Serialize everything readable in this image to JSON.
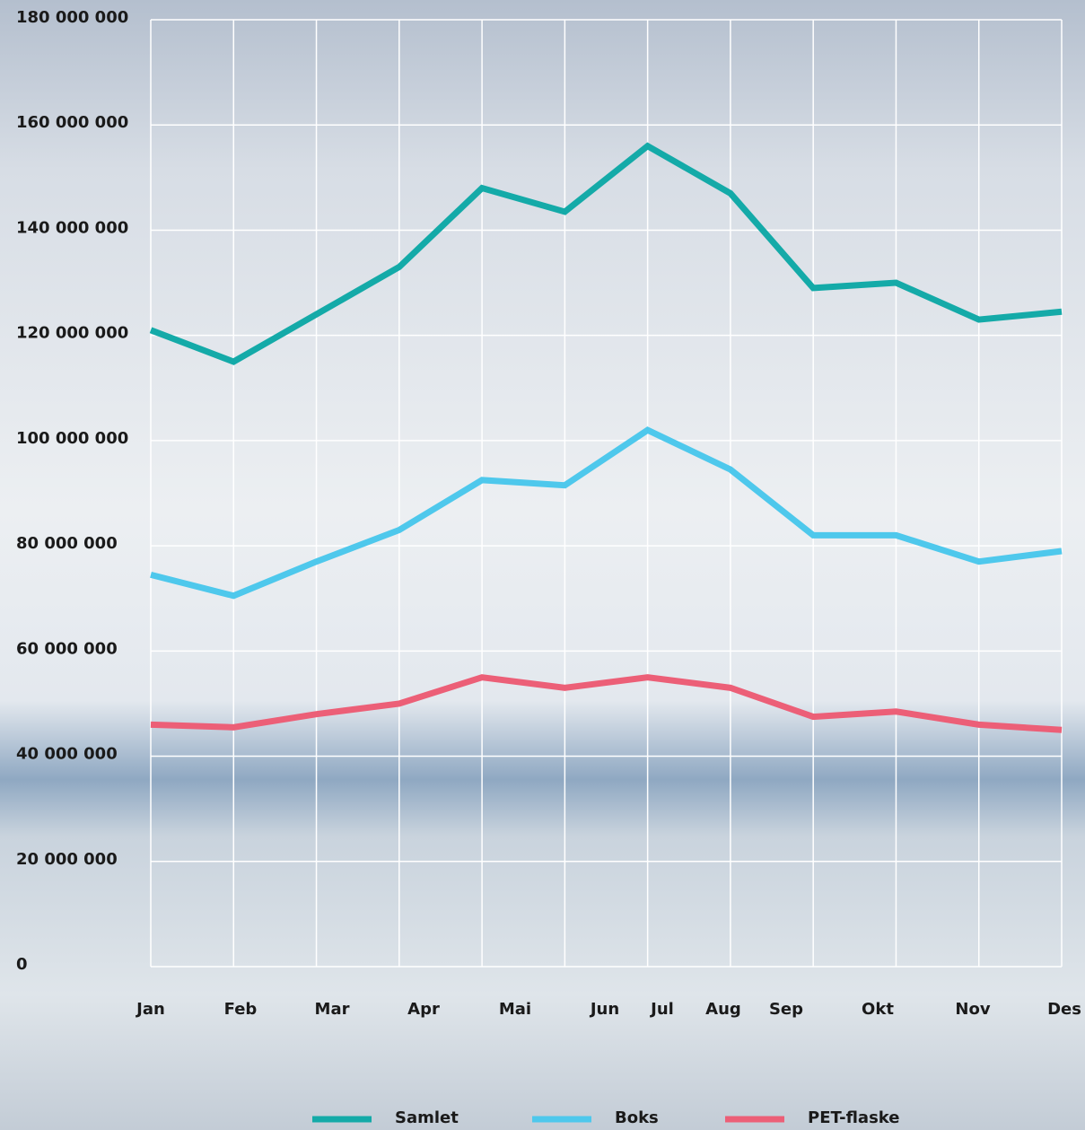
{
  "chart_data": {
    "type": "line",
    "categories": [
      "Jan",
      "Feb",
      "Mar",
      "Apr",
      "Mai",
      "Jun",
      "Jul",
      "Aug",
      "Sep",
      "Okt",
      "Nov",
      "Des"
    ],
    "series": [
      {
        "name": "Samlet",
        "color": "#14aaa8",
        "values": [
          121000000,
          115000000,
          124000000,
          133000000,
          148000000,
          143500000,
          156000000,
          147000000,
          129000000,
          130000000,
          123000000,
          124500000
        ]
      },
      {
        "name": "Boks",
        "color": "#4ec8ec",
        "values": [
          74500000,
          70500000,
          77000000,
          83000000,
          92500000,
          91500000,
          102000000,
          94500000,
          82000000,
          82000000,
          77000000,
          79000000
        ]
      },
      {
        "name": "PET-flaske",
        "color": "#ec5f77",
        "values": [
          46000000,
          45500000,
          48000000,
          50000000,
          55000000,
          53000000,
          55000000,
          53000000,
          47500000,
          48500000,
          46000000,
          45000000
        ]
      }
    ],
    "ylim": [
      0,
      180000000
    ],
    "yticks": [
      {
        "value": 0,
        "label": "0"
      },
      {
        "value": 20000000,
        "label": "20 000 000"
      },
      {
        "value": 40000000,
        "label": "40 000 000"
      },
      {
        "value": 60000000,
        "label": "60 000 000"
      },
      {
        "value": 80000000,
        "label": "80 000 000"
      },
      {
        "value": 100000000,
        "label": "100 000 000"
      },
      {
        "value": 120000000,
        "label": "120 000 000"
      },
      {
        "value": 140000000,
        "label": "140 000 000"
      },
      {
        "value": 160000000,
        "label": "160 000 000"
      },
      {
        "value": 180000000,
        "label": "180 000 000"
      }
    ],
    "grid": true
  }
}
